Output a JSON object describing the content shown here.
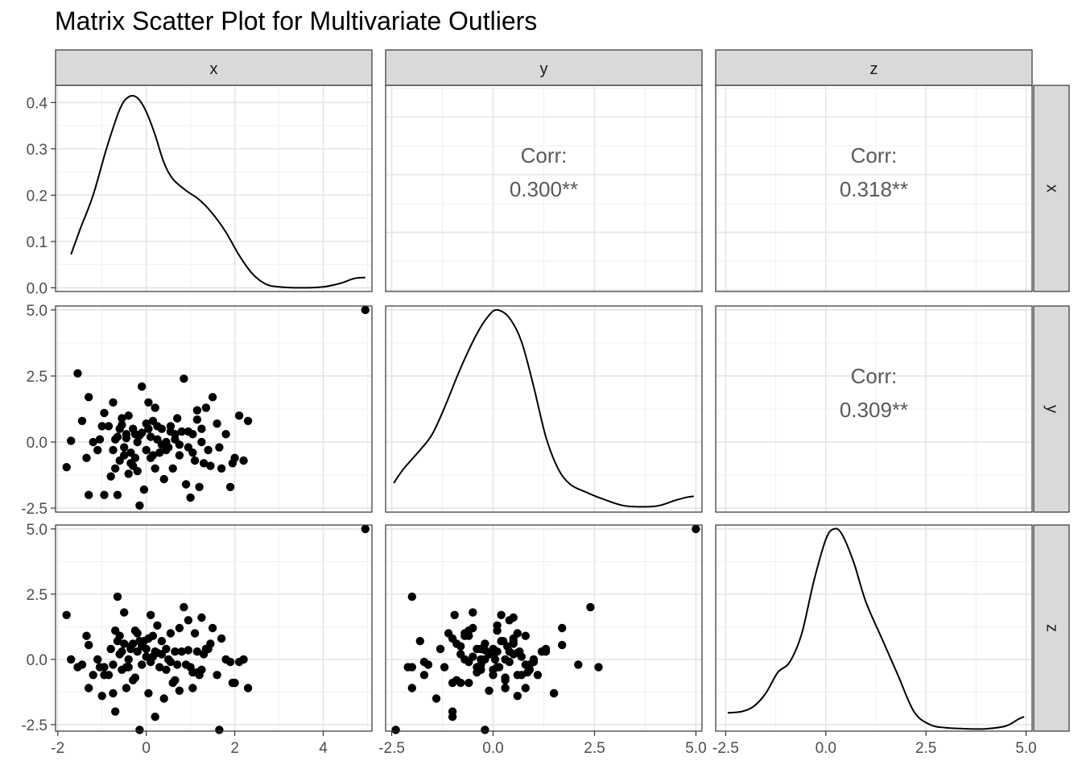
{
  "title": "Matrix Scatter Plot for Multivariate Outliers",
  "chart_data": {
    "type": "scatter",
    "variables": [
      "x",
      "y",
      "z"
    ],
    "strip_labels": {
      "columns": [
        "x",
        "y",
        "z"
      ],
      "rows": [
        "x",
        "y",
        "z"
      ]
    },
    "axes": {
      "x": {
        "range": [
          -2.05,
          5.1
        ],
        "ticks": [
          -2,
          0,
          2,
          4
        ],
        "tick_labels": [
          "-2",
          "0",
          "2",
          "4"
        ]
      },
      "y": {
        "range": [
          -2.65,
          5.15
        ],
        "ticks": [
          -2.5,
          0.0,
          2.5,
          5.0
        ],
        "tick_labels": [
          "-2.5",
          "0.0",
          "2.5",
          "5.0"
        ]
      },
      "z": {
        "range": [
          -2.75,
          5.15
        ],
        "ticks": [
          -2.5,
          0.0,
          2.5,
          5.0
        ],
        "tick_labels": [
          "-2.5",
          "0.0",
          "2.5",
          "5.0"
        ]
      }
    },
    "density_axis": {
      "range": [
        -0.008,
        0.437
      ],
      "ticks": [
        0.0,
        0.1,
        0.2,
        0.3,
        0.4
      ],
      "tick_labels": [
        "0.0",
        "0.1",
        "0.2",
        "0.3",
        "0.4"
      ]
    },
    "densities": {
      "x": [
        [
          -1.7,
          0.072
        ],
        [
          -1.5,
          0.125
        ],
        [
          -1.2,
          0.2
        ],
        [
          -0.9,
          0.3
        ],
        [
          -0.6,
          0.385
        ],
        [
          -0.4,
          0.412
        ],
        [
          -0.2,
          0.41
        ],
        [
          0.0,
          0.38
        ],
        [
          0.2,
          0.33
        ],
        [
          0.4,
          0.27
        ],
        [
          0.6,
          0.235
        ],
        [
          0.9,
          0.21
        ],
        [
          1.2,
          0.19
        ],
        [
          1.5,
          0.16
        ],
        [
          1.8,
          0.12
        ],
        [
          2.1,
          0.07
        ],
        [
          2.4,
          0.03
        ],
        [
          2.7,
          0.008
        ],
        [
          3.0,
          0.002
        ],
        [
          3.5,
          0.0
        ],
        [
          4.0,
          0.002
        ],
        [
          4.4,
          0.01
        ],
        [
          4.7,
          0.02
        ],
        [
          4.95,
          0.022
        ]
      ],
      "y": [
        [
          -2.45,
          -1.55
        ],
        [
          -2.2,
          -1.0
        ],
        [
          -1.8,
          -0.3
        ],
        [
          -1.5,
          0.3
        ],
        [
          -1.2,
          1.3
        ],
        [
          -0.8,
          2.8
        ],
        [
          -0.4,
          4.1
        ],
        [
          -0.1,
          4.8
        ],
        [
          0.1,
          5.0
        ],
        [
          0.4,
          4.7
        ],
        [
          0.7,
          3.8
        ],
        [
          1.0,
          2.1
        ],
        [
          1.3,
          0.2
        ],
        [
          1.6,
          -1.0
        ],
        [
          1.9,
          -1.6
        ],
        [
          2.3,
          -1.9
        ],
        [
          2.7,
          -2.15
        ],
        [
          3.2,
          -2.4
        ],
        [
          3.7,
          -2.45
        ],
        [
          4.1,
          -2.4
        ],
        [
          4.5,
          -2.2
        ],
        [
          4.8,
          -2.08
        ],
        [
          4.95,
          -2.05
        ]
      ],
      "z": [
        [
          -2.45,
          -2.05
        ],
        [
          -2.1,
          -2.0
        ],
        [
          -1.8,
          -1.8
        ],
        [
          -1.5,
          -1.3
        ],
        [
          -1.2,
          -0.5
        ],
        [
          -0.9,
          -0.1
        ],
        [
          -0.6,
          1.0
        ],
        [
          -0.3,
          3.0
        ],
        [
          0.0,
          4.6
        ],
        [
          0.2,
          5.0
        ],
        [
          0.4,
          4.8
        ],
        [
          0.7,
          3.7
        ],
        [
          1.0,
          2.2
        ],
        [
          1.4,
          0.8
        ],
        [
          1.8,
          -0.6
        ],
        [
          2.2,
          -2.0
        ],
        [
          2.6,
          -2.5
        ],
        [
          3.0,
          -2.62
        ],
        [
          3.5,
          -2.66
        ],
        [
          4.0,
          -2.66
        ],
        [
          4.5,
          -2.55
        ],
        [
          4.8,
          -2.3
        ],
        [
          4.95,
          -2.2
        ]
      ]
    },
    "correlations": [
      {
        "row": "x",
        "col": "y",
        "label": "Corr:",
        "value": "0.300**"
      },
      {
        "row": "x",
        "col": "z",
        "label": "Corr:",
        "value": "0.318**"
      },
      {
        "row": "y",
        "col": "z",
        "label": "Corr:",
        "value": "0.309**"
      }
    ],
    "points": {
      "x": [
        -1.8,
        -1.7,
        -1.55,
        -1.45,
        -1.35,
        -1.3,
        -1.3,
        -1.2,
        -1.1,
        -1.0,
        -0.95,
        -0.85,
        -0.8,
        -0.75,
        -0.7,
        -0.7,
        -0.65,
        -0.6,
        -0.6,
        -0.55,
        -0.5,
        -0.5,
        -0.45,
        -0.4,
        -0.4,
        -0.35,
        -0.3,
        -0.3,
        -0.25,
        -0.2,
        -0.2,
        -0.15,
        -0.1,
        -0.1,
        -0.05,
        0.0,
        0.0,
        0.05,
        0.1,
        0.1,
        0.15,
        0.2,
        0.2,
        0.25,
        0.3,
        0.35,
        0.4,
        0.45,
        0.5,
        0.55,
        0.6,
        0.65,
        0.7,
        0.75,
        0.8,
        0.85,
        0.9,
        0.95,
        1.0,
        1.05,
        1.1,
        1.15,
        1.2,
        1.25,
        1.3,
        1.4,
        1.5,
        1.6,
        1.7,
        1.8,
        1.9,
        2.0,
        2.1,
        2.3,
        -0.65,
        -0.35,
        0.15,
        0.55,
        1.05,
        -0.95,
        0.35,
        -0.15,
        0.75,
        1.25,
        1.65,
        2.2,
        -0.55,
        0.05,
        0.45,
        0.95,
        1.45,
        -1.05,
        -0.25,
        0.65,
        1.35,
        -0.75,
        0.25,
        1.15,
        1.95,
        -0.45,
        4.95
      ],
      "y": [
        -0.95,
        0.05,
        2.6,
        0.8,
        -0.6,
        -2.0,
        1.7,
        0.0,
        -0.3,
        0.6,
        -2.0,
        0.6,
        -1.3,
        1.5,
        0.1,
        -1.0,
        -2.0,
        -0.7,
        0.5,
        0.9,
        -0.5,
        -0.2,
        0.3,
        1.0,
        -1.2,
        -0.4,
        0.5,
        -0.9,
        0.3,
        0.0,
        -1.1,
        -2.4,
        0.35,
        2.1,
        -1.8,
        0.7,
        -0.3,
        1.5,
        0.2,
        -0.6,
        0.8,
        1.3,
        -1.0,
        0.1,
        -0.4,
        0.5,
        -1.4,
        0.0,
        -0.2,
        0.6,
        -1.0,
        0.1,
        0.9,
        -0.5,
        0.4,
        2.4,
        -1.6,
        0.4,
        -2.1,
        0.3,
        -0.7,
        1.2,
        -1.7,
        0.5,
        -0.8,
        -0.3,
        1.7,
        0.7,
        -1.0,
        0.3,
        -1.7,
        -0.6,
        1.0,
        0.8,
        0.2,
        -0.8,
        -0.5,
        0.4,
        -0.4,
        1.1,
        -0.1,
        0.25,
        -0.1,
        0.0,
        -0.2,
        -0.7,
        0.65,
        0.5,
        -0.3,
        -0.2,
        -0.9,
        0.1,
        -0.6,
        0.3,
        1.3,
        -0.3,
        0.6,
        0.85,
        -0.8,
        0.15,
        5.0
      ],
      "z": [
        1.7,
        0.0,
        -0.3,
        -0.2,
        0.9,
        -1.1,
        0.55,
        -0.6,
        0.0,
        -1.4,
        -0.3,
        -0.6,
        0.4,
        -1.3,
        1.1,
        -2.0,
        2.4,
        0.9,
        0.2,
        -0.4,
        1.8,
        0.6,
        -1.1,
        0.0,
        -0.3,
        0.4,
        0.6,
        -0.8,
        -0.7,
        0.3,
        1.0,
        -2.7,
        0.5,
        -0.2,
        0.7,
        0.1,
        0.4,
        -1.3,
        1.7,
        -0.1,
        0.9,
        0.3,
        -2.2,
        1.3,
        -0.3,
        0.7,
        -1.5,
        0.4,
        0.0,
        1.0,
        -0.9,
        0.3,
        -0.2,
        1.2,
        0.3,
        2.0,
        -0.2,
        1.5,
        -0.3,
        -1.1,
        1.0,
        0.3,
        -0.6,
        1.6,
        0.2,
        0.4,
        1.2,
        -0.6,
        0.8,
        0.0,
        -0.1,
        -0.9,
        -0.1,
        -1.1,
        0.7,
        0.5,
        0.1,
        -0.1,
        -0.5,
        -0.6,
        0.2,
        0.7,
        -1.2,
        -0.4,
        -2.7,
        0.0,
        0.3,
        0.8,
        -0.4,
        0.35,
        0.6,
        -0.3,
        1.1,
        -0.8,
        0.4,
        -0.2,
        0.25,
        -0.5,
        -0.9,
        -0.3,
        5.0
      ]
    }
  }
}
